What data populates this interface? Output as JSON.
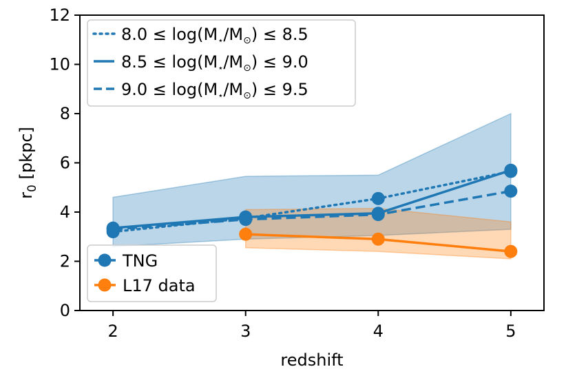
{
  "chart_data": {
    "type": "line",
    "xlabel": "redshift",
    "ylabel_main": "r",
    "ylabel_sub": "0",
    "ylabel_rest": " [pkpc]",
    "xlim": [
      1.75,
      5.25
    ],
    "ylim": [
      0,
      12
    ],
    "xticks": [
      2,
      3,
      4,
      5
    ],
    "yticks": [
      0,
      2,
      4,
      6,
      8,
      10,
      12
    ],
    "colors": {
      "tng": "#1f77b4",
      "l17": "#ff7f0e"
    },
    "tng_band": {
      "x": [
        2,
        3,
        4,
        5
      ],
      "upper": [
        4.6,
        5.45,
        5.5,
        8.0
      ],
      "lower": [
        2.6,
        2.9,
        3.05,
        3.3
      ]
    },
    "l17_band": {
      "x": [
        3,
        4,
        5
      ],
      "upper": [
        4.1,
        4.15,
        3.6
      ],
      "lower": [
        2.55,
        2.4,
        2.1
      ]
    },
    "series": [
      {
        "name": "8.0 ≤ log(M⋆/M⊙) ≤ 8.5",
        "style": "dotted",
        "x": [
          2,
          3,
          4,
          5
        ],
        "y": [
          3.2,
          3.75,
          4.55,
          5.65
        ]
      },
      {
        "name": "8.5 ≤ log(M⋆/M⊙) ≤ 9.0",
        "style": "solid",
        "x": [
          2,
          3,
          4,
          5
        ],
        "y": [
          3.35,
          3.8,
          3.95,
          5.7
        ]
      },
      {
        "name": "9.0 ≤ log(M⋆/M⊙) ≤ 9.5",
        "style": "dashed",
        "x": [
          2,
          3,
          4,
          5
        ],
        "y": [
          3.3,
          3.7,
          3.9,
          4.85
        ]
      },
      {
        "name": "L17 data",
        "style": "solid-orange",
        "x": [
          3,
          4,
          5
        ],
        "y": [
          3.1,
          2.9,
          2.4
        ]
      }
    ],
    "legend_top": [
      {
        "lo": "8.0",
        "hi": "8.5",
        "style": "dotted"
      },
      {
        "lo": "8.5",
        "hi": "9.0",
        "style": "solid"
      },
      {
        "lo": "9.0",
        "hi": "9.5",
        "style": "dashed"
      }
    ],
    "legend_top_parts": {
      "le": "≤",
      "log_open": "log(M",
      "star": "⋆",
      "slash": "/M",
      "sun": "⊙",
      "close": ")"
    },
    "legend_bottom": [
      {
        "label": "TNG",
        "color_key": "tng"
      },
      {
        "label": "L17 data",
        "color_key": "l17"
      }
    ],
    "legend_top_position": "upper-left",
    "legend_bottom_position": "lower-left"
  }
}
